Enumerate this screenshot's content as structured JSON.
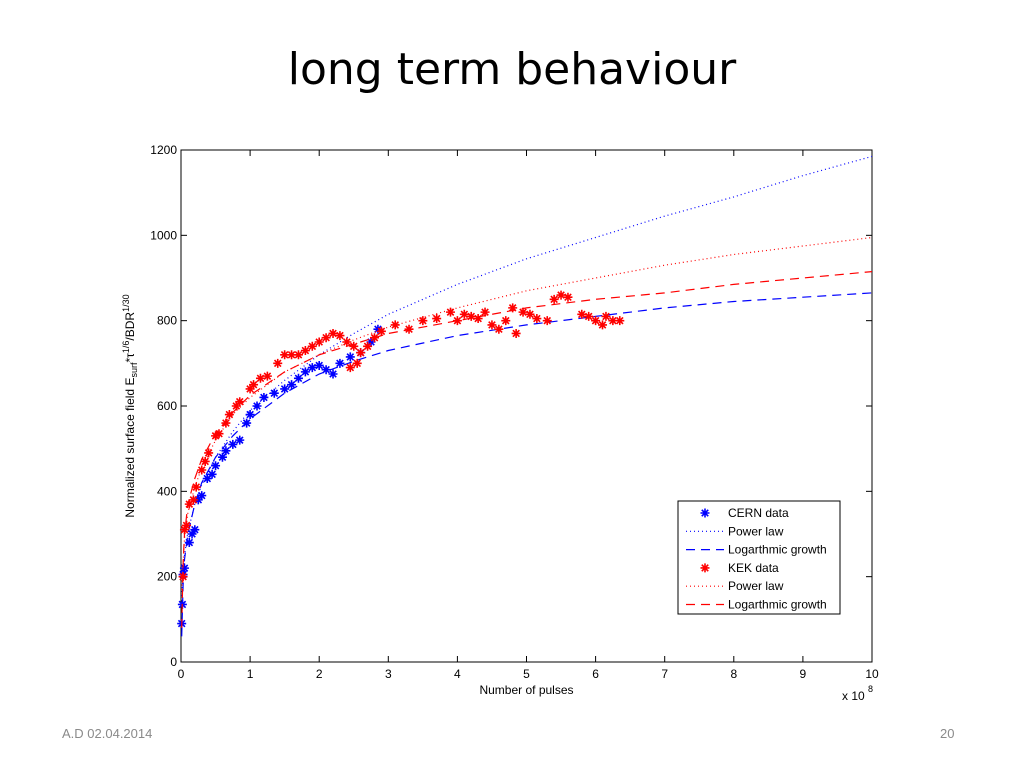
{
  "slide": {
    "title": "long term behaviour",
    "footer_left": "A.D 02.04.2014",
    "page_number": "20"
  },
  "chart_data": {
    "type": "scatter",
    "xlabel": "Number of pulses",
    "ylabel_parts": [
      "Normalized surface field E",
      "surf",
      "*τ",
      "1/6",
      "/BDR",
      "1/30"
    ],
    "x_multiplier": "x 10",
    "x_multiplier_exponent": "8",
    "xlim": [
      0,
      10
    ],
    "ylim": [
      0,
      1200
    ],
    "xticks": [
      0,
      1,
      2,
      3,
      4,
      5,
      6,
      7,
      8,
      9,
      10
    ],
    "yticks": [
      0,
      200,
      400,
      600,
      800,
      1000,
      1200
    ],
    "legend_position": "bottom-right",
    "grid": false,
    "colors": {
      "cern": "#0000ff",
      "kek": "#ff0000"
    },
    "series": [
      {
        "name": "CERN data",
        "kind": "markers",
        "color": "#0000ff",
        "points": [
          [
            0.01,
            90
          ],
          [
            0.02,
            135
          ],
          [
            0.03,
            205
          ],
          [
            0.05,
            220
          ],
          [
            0.12,
            280
          ],
          [
            0.16,
            300
          ],
          [
            0.2,
            310
          ],
          [
            0.25,
            380
          ],
          [
            0.3,
            390
          ],
          [
            0.38,
            430
          ],
          [
            0.45,
            440
          ],
          [
            0.5,
            460
          ],
          [
            0.6,
            480
          ],
          [
            0.65,
            495
          ],
          [
            0.75,
            510
          ],
          [
            0.85,
            520
          ],
          [
            0.95,
            560
          ],
          [
            1.0,
            580
          ],
          [
            1.1,
            600
          ],
          [
            1.2,
            620
          ],
          [
            1.35,
            630
          ],
          [
            1.5,
            640
          ],
          [
            1.6,
            650
          ],
          [
            1.7,
            665
          ],
          [
            1.8,
            680
          ],
          [
            1.9,
            690
          ],
          [
            2.0,
            695
          ],
          [
            2.1,
            685
          ],
          [
            2.2,
            675
          ],
          [
            2.3,
            700
          ],
          [
            2.45,
            715
          ],
          [
            2.6,
            725
          ],
          [
            2.75,
            750
          ],
          [
            2.85,
            780
          ]
        ]
      },
      {
        "name": "Power law",
        "kind": "line",
        "dash": "1,3",
        "color": "#0000ff",
        "points": [
          [
            0.01,
            155
          ],
          [
            0.05,
            250
          ],
          [
            0.1,
            305
          ],
          [
            0.2,
            370
          ],
          [
            0.3,
            415
          ],
          [
            0.5,
            480
          ],
          [
            0.75,
            540
          ],
          [
            1.0,
            590
          ],
          [
            1.5,
            660
          ],
          [
            2.0,
            720
          ],
          [
            2.5,
            770
          ],
          [
            3.0,
            815
          ],
          [
            4.0,
            885
          ],
          [
            5.0,
            945
          ],
          [
            6.0,
            995
          ],
          [
            7.0,
            1045
          ],
          [
            8.0,
            1090
          ],
          [
            9.0,
            1140
          ],
          [
            10.0,
            1185
          ]
        ]
      },
      {
        "name": "Logarthmic growth",
        "kind": "line",
        "dash": "9,6",
        "color": "#0000ff",
        "points": [
          [
            0.01,
            60
          ],
          [
            0.03,
            180
          ],
          [
            0.05,
            240
          ],
          [
            0.1,
            300
          ],
          [
            0.2,
            370
          ],
          [
            0.3,
            420
          ],
          [
            0.5,
            480
          ],
          [
            0.75,
            530
          ],
          [
            1.0,
            570
          ],
          [
            1.5,
            630
          ],
          [
            2.0,
            675
          ],
          [
            2.5,
            705
          ],
          [
            3.0,
            730
          ],
          [
            4.0,
            765
          ],
          [
            5.0,
            790
          ],
          [
            6.0,
            810
          ],
          [
            7.0,
            830
          ],
          [
            8.0,
            845
          ],
          [
            9.0,
            855
          ],
          [
            10.0,
            865
          ]
        ]
      },
      {
        "name": "KEK data",
        "kind": "markers",
        "color": "#ff0000",
        "points": [
          [
            0.03,
            200
          ],
          [
            0.05,
            310
          ],
          [
            0.08,
            320
          ],
          [
            0.12,
            370
          ],
          [
            0.18,
            380
          ],
          [
            0.22,
            410
          ],
          [
            0.3,
            450
          ],
          [
            0.35,
            470
          ],
          [
            0.4,
            490
          ],
          [
            0.5,
            530
          ],
          [
            0.55,
            535
          ],
          [
            0.65,
            560
          ],
          [
            0.7,
            580
          ],
          [
            0.8,
            600
          ],
          [
            0.85,
            610
          ],
          [
            1.0,
            640
          ],
          [
            1.05,
            650
          ],
          [
            1.15,
            665
          ],
          [
            1.25,
            670
          ],
          [
            1.4,
            700
          ],
          [
            1.5,
            720
          ],
          [
            1.6,
            720
          ],
          [
            1.7,
            720
          ],
          [
            1.8,
            730
          ],
          [
            1.9,
            740
          ],
          [
            2.0,
            750
          ],
          [
            2.1,
            760
          ],
          [
            2.2,
            770
          ],
          [
            2.3,
            765
          ],
          [
            2.4,
            750
          ],
          [
            2.5,
            740
          ],
          [
            2.6,
            725
          ],
          [
            2.55,
            700
          ],
          [
            2.45,
            690
          ],
          [
            2.7,
            740
          ],
          [
            2.8,
            760
          ],
          [
            2.9,
            775
          ],
          [
            3.1,
            790
          ],
          [
            3.3,
            780
          ],
          [
            3.5,
            800
          ],
          [
            3.7,
            805
          ],
          [
            3.9,
            820
          ],
          [
            4.0,
            800
          ],
          [
            4.1,
            815
          ],
          [
            4.2,
            810
          ],
          [
            4.3,
            805
          ],
          [
            4.4,
            820
          ],
          [
            4.5,
            790
          ],
          [
            4.6,
            780
          ],
          [
            4.7,
            800
          ],
          [
            4.8,
            830
          ],
          [
            4.85,
            770
          ],
          [
            4.95,
            820
          ],
          [
            5.05,
            815
          ],
          [
            5.15,
            805
          ],
          [
            5.3,
            800
          ],
          [
            5.4,
            850
          ],
          [
            5.5,
            860
          ],
          [
            5.6,
            855
          ],
          [
            5.8,
            815
          ],
          [
            5.9,
            810
          ],
          [
            6.0,
            800
          ],
          [
            6.1,
            790
          ],
          [
            6.15,
            810
          ],
          [
            6.25,
            800
          ],
          [
            6.35,
            800
          ]
        ]
      },
      {
        "name": "Power law",
        "kind": "line",
        "dash": "1,3",
        "color": "#ff0000",
        "points": [
          [
            0.01,
            170
          ],
          [
            0.05,
            290
          ],
          [
            0.1,
            350
          ],
          [
            0.2,
            410
          ],
          [
            0.3,
            455
          ],
          [
            0.5,
            520
          ],
          [
            0.75,
            580
          ],
          [
            1.0,
            620
          ],
          [
            1.5,
            680
          ],
          [
            2.0,
            720
          ],
          [
            2.5,
            755
          ],
          [
            3.0,
            785
          ],
          [
            4.0,
            830
          ],
          [
            5.0,
            870
          ],
          [
            6.0,
            900
          ],
          [
            7.0,
            930
          ],
          [
            8.0,
            955
          ],
          [
            9.0,
            975
          ],
          [
            10.0,
            995
          ]
        ]
      },
      {
        "name": "Logarthmic growth",
        "kind": "line",
        "dash": "9,6",
        "color": "#ff0000",
        "points": [
          [
            0.01,
            80
          ],
          [
            0.03,
            230
          ],
          [
            0.05,
            300
          ],
          [
            0.1,
            370
          ],
          [
            0.2,
            430
          ],
          [
            0.3,
            475
          ],
          [
            0.5,
            535
          ],
          [
            0.75,
            585
          ],
          [
            1.0,
            625
          ],
          [
            1.5,
            680
          ],
          [
            2.0,
            720
          ],
          [
            2.5,
            745
          ],
          [
            3.0,
            770
          ],
          [
            4.0,
            800
          ],
          [
            5.0,
            830
          ],
          [
            6.0,
            850
          ],
          [
            7.0,
            865
          ],
          [
            8.0,
            885
          ],
          [
            9.0,
            900
          ],
          [
            10.0,
            915
          ]
        ]
      }
    ]
  }
}
